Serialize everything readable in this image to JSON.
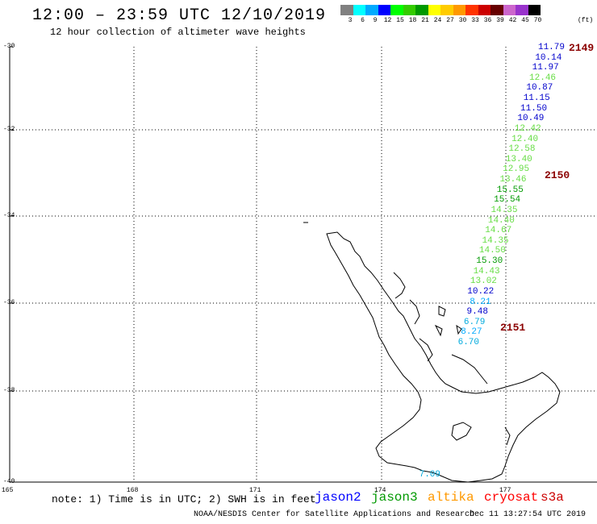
{
  "title": "12:00 – 23:59 UTC 12/10/2019",
  "subtitle": "12 hour collection of altimeter wave heights",
  "legend": {
    "unit": "(ft)",
    "items": [
      {
        "label": "3",
        "color": "#808080"
      },
      {
        "label": "6",
        "color": "#00ffff"
      },
      {
        "label": "9",
        "color": "#00aaff"
      },
      {
        "label": "12",
        "color": "#0000ff"
      },
      {
        "label": "15",
        "color": "#00ff00"
      },
      {
        "label": "18",
        "color": "#33cc00"
      },
      {
        "label": "21",
        "color": "#009900"
      },
      {
        "label": "24",
        "color": "#ffff00"
      },
      {
        "label": "27",
        "color": "#ffcc00"
      },
      {
        "label": "30",
        "color": "#ff9900"
      },
      {
        "label": "33",
        "color": "#ff3300"
      },
      {
        "label": "36",
        "color": "#cc0000"
      },
      {
        "label": "39",
        "color": "#660000"
      },
      {
        "label": "42",
        "color": "#cc66cc"
      },
      {
        "label": "45",
        "color": "#9933cc"
      },
      {
        "label": "70",
        "color": "#000000"
      }
    ]
  },
  "lat_labels": [
    "-30",
    "-32",
    "-34",
    "-36",
    "-38",
    "-40"
  ],
  "lon_labels": [
    "165",
    "168",
    "171",
    "174",
    "177"
  ],
  "wave_heights": [
    {
      "v": "11.79",
      "c": "#0000cc"
    },
    {
      "v": "10.14",
      "c": "#0000cc"
    },
    {
      "v": "11.97",
      "c": "#0000cc"
    },
    {
      "v": "12.46",
      "c": "#66dd44"
    },
    {
      "v": "10.87",
      "c": "#0000cc"
    },
    {
      "v": "11.15",
      "c": "#0000cc"
    },
    {
      "v": "11.50",
      "c": "#0000cc"
    },
    {
      "v": "10.49",
      "c": "#0000cc"
    },
    {
      "v": "12.42",
      "c": "#66dd44"
    },
    {
      "v": "12.40",
      "c": "#66dd44"
    },
    {
      "v": "12.58",
      "c": "#66dd44"
    },
    {
      "v": "13.40",
      "c": "#66dd44"
    },
    {
      "v": "12.95",
      "c": "#66dd44"
    },
    {
      "v": "13.46",
      "c": "#66dd44"
    },
    {
      "v": "15.55",
      "c": "#009900"
    },
    {
      "v": "15.54",
      "c": "#009900"
    },
    {
      "v": "14.35",
      "c": "#66dd44"
    },
    {
      "v": "14.40",
      "c": "#66dd44"
    },
    {
      "v": "14.67",
      "c": "#66dd44"
    },
    {
      "v": "14.35",
      "c": "#66dd44"
    },
    {
      "v": "14.50",
      "c": "#66dd44"
    },
    {
      "v": "15.30",
      "c": "#009900"
    },
    {
      "v": "14.43",
      "c": "#66dd44"
    },
    {
      "v": "13.02",
      "c": "#66dd44"
    },
    {
      "v": "10.22",
      "c": "#0000cc"
    },
    {
      "v": "8.21",
      "c": "#00aaff"
    },
    {
      "v": "9.48",
      "c": "#0000cc"
    },
    {
      "v": "6.79",
      "c": "#00aadd"
    },
    {
      "v": "8.27",
      "c": "#00aaff"
    },
    {
      "v": "6.70",
      "c": "#00aadd"
    }
  ],
  "extra_height": {
    "v": "7.09",
    "c": "#00aadd"
  },
  "passes": [
    "2149",
    "2150",
    "2151"
  ],
  "note": "note: 1) Time is in UTC; 2) SWH is in feet",
  "satellites": [
    {
      "name": "jason2",
      "color": "#0000ff"
    },
    {
      "name": "jason3",
      "color": "#009900"
    },
    {
      "name": "altika",
      "color": "#ff9900"
    },
    {
      "name": "cryosat",
      "color": "#ff0000"
    },
    {
      "name": "s3a",
      "color": "#cc0000"
    }
  ],
  "footer_left": "NOAA/NESDIS Center for Satellite Applications and Research",
  "footer_right": "Dec 11 13:27:54 UTC 2019"
}
